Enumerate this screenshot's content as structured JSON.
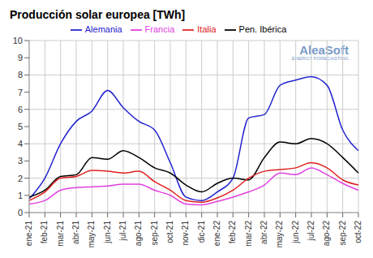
{
  "chart_data": {
    "type": "line",
    "title": "Producción solar europea [TWh]",
    "categories": [
      "ene-21",
      "feb-21",
      "mar-21",
      "abr-21",
      "may-21",
      "jun-21",
      "jul-21",
      "ago-21",
      "sep-21",
      "oct-21",
      "nov-21",
      "dic-21",
      "ene-22",
      "feb-22",
      "mar-22",
      "abr-22",
      "may-22",
      "jun-22",
      "jul-22",
      "ago-22",
      "sep-22",
      "oct-22"
    ],
    "series": [
      {
        "name": "Alemania",
        "color": "#2424d0",
        "values": [
          0.8,
          2.0,
          4.0,
          5.3,
          5.9,
          7.1,
          6.1,
          5.3,
          4.8,
          2.9,
          0.9,
          0.7,
          1.2,
          2.0,
          5.5,
          5.7,
          7.4,
          7.7,
          7.9,
          7.4,
          4.8,
          3.6
        ]
      },
      {
        "name": "Francia",
        "color": "#e040e0",
        "values": [
          0.5,
          0.7,
          1.3,
          1.45,
          1.5,
          1.55,
          1.65,
          1.65,
          1.3,
          1.0,
          0.5,
          0.45,
          0.65,
          0.9,
          1.2,
          1.6,
          2.3,
          2.2,
          2.6,
          2.2,
          1.7,
          1.3
        ]
      },
      {
        "name": "Pen. Ibérica",
        "color": "#000000",
        "values": [
          0.9,
          1.3,
          2.1,
          2.2,
          3.2,
          3.1,
          3.6,
          3.2,
          2.6,
          2.3,
          1.6,
          1.2,
          1.7,
          2.0,
          1.9,
          3.2,
          4.1,
          4.0,
          4.3,
          4.0,
          3.2,
          2.3
        ]
      },
      {
        "name": "Italia",
        "color": "#e02020",
        "values": [
          0.7,
          1.2,
          2.0,
          2.1,
          2.45,
          2.4,
          2.3,
          2.4,
          1.8,
          1.3,
          0.7,
          0.6,
          0.85,
          1.3,
          2.0,
          2.4,
          2.5,
          2.6,
          2.9,
          2.6,
          1.9,
          1.6
        ]
      }
    ],
    "ylim": [
      0,
      10
    ],
    "yticks": [
      0,
      1,
      2,
      3,
      4,
      5,
      6,
      7,
      8,
      9,
      10
    ],
    "grid": true,
    "legend": "top",
    "annotations": [
      "AleaSoft",
      "ENERGY FORECASTING"
    ]
  }
}
